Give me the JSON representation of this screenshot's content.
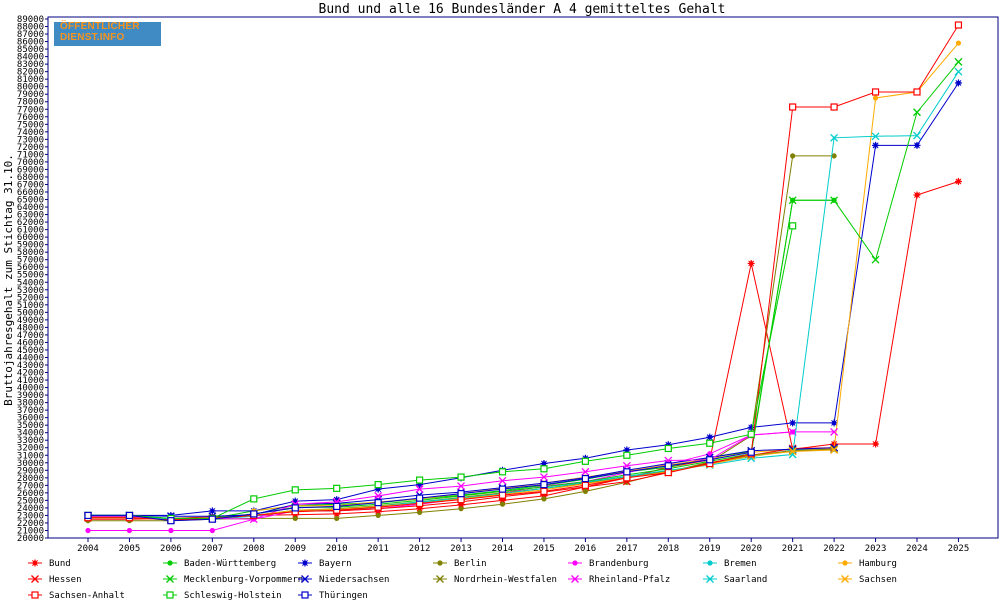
{
  "logo": {
    "line1": "ÖFFENTLICHER",
    "line2": "DIENST.INFO"
  },
  "chart_data": {
    "type": "line",
    "title": "Bund und alle 16 Bundesländer A 4 gemitteltes Gehalt",
    "xlabel": "",
    "ylabel": "Bruttojahresgehalt zum Stichtag 31.10.",
    "ylim": [
      20000,
      89000
    ],
    "ytick_step": 1000,
    "categories": [
      "2004",
      "2005",
      "2006",
      "2007",
      "2008",
      "2009",
      "2010",
      "2011",
      "2012",
      "2013",
      "2014",
      "2015",
      "2016",
      "2017",
      "2018",
      "2019",
      "2020",
      "2021",
      "2022",
      "2023",
      "2024",
      "2025"
    ],
    "grid": false,
    "legend_position": "bottom",
    "series": [
      {
        "name": "Bund",
        "color": "#ff0000",
        "marker": "star",
        "values": [
          22500,
          22500,
          22600,
          22800,
          23000,
          23100,
          23200,
          23500,
          23900,
          24400,
          25000,
          25600,
          26800,
          28000,
          29400,
          30400,
          56500,
          31800,
          32500,
          32500,
          65600,
          67400
        ]
      },
      {
        "name": "Baden-Württemberg",
        "color": "#00cc00",
        "marker": "dot",
        "values": [
          22800,
          22800,
          22600,
          22600,
          23600,
          24300,
          24500,
          24700,
          25200,
          25700,
          26300,
          27000,
          27800,
          28800,
          29400,
          30700,
          31500,
          64900,
          64900,
          null,
          null,
          null
        ]
      },
      {
        "name": "Bayern",
        "color": "#0000cc",
        "marker": "star",
        "values": [
          23000,
          23000,
          23000,
          23600,
          23600,
          24900,
          25100,
          26500,
          27100,
          28000,
          29000,
          29900,
          30600,
          31700,
          32400,
          33400,
          34700,
          35300,
          35300,
          72200,
          72200,
          80500
        ]
      },
      {
        "name": "Berlin",
        "color": "#808000",
        "marker": "dot",
        "values": [
          22300,
          22300,
          22300,
          22500,
          22600,
          22600,
          22600,
          23000,
          23400,
          23900,
          24500,
          25200,
          26200,
          27400,
          28800,
          30100,
          33600,
          70800,
          70800,
          null,
          null,
          null
        ]
      },
      {
        "name": "Brandenburg",
        "color": "#ff00ff",
        "marker": "dot",
        "values": [
          21000,
          21000,
          21000,
          21000,
          22500,
          23600,
          23600,
          23900,
          24500,
          25200,
          26000,
          26900,
          27500,
          28700,
          29800,
          31200,
          33700,
          34100,
          null,
          null,
          null,
          null
        ]
      },
      {
        "name": "Bremen",
        "color": "#00cccc",
        "marker": "dot",
        "values": [
          23000,
          23000,
          22500,
          22500,
          22900,
          23600,
          23600,
          24100,
          24700,
          25200,
          25900,
          26600,
          27300,
          28100,
          28900,
          29900,
          30800,
          31700,
          31800,
          null,
          null,
          null
        ]
      },
      {
        "name": "Hamburg",
        "color": "#ffaa00",
        "marker": "dot",
        "values": [
          null,
          null,
          null,
          null,
          23600,
          24300,
          24300,
          24800,
          25200,
          25900,
          26600,
          27300,
          28100,
          28900,
          29700,
          30500,
          31400,
          31800,
          31900,
          78500,
          79300,
          85800
        ]
      },
      {
        "name": "Hessen",
        "color": "#ff0000",
        "marker": "x",
        "values": [
          23000,
          23000,
          22500,
          22600,
          23000,
          23600,
          23600,
          23900,
          24300,
          24800,
          25500,
          26100,
          26800,
          27500,
          28700,
          30000,
          31000,
          31900,
          32000,
          null,
          null,
          null
        ]
      },
      {
        "name": "Mecklenburg-Vorpommern",
        "color": "#00cc00",
        "marker": "x",
        "values": [
          22700,
          22700,
          22400,
          22600,
          23200,
          24100,
          24100,
          24500,
          25000,
          25600,
          26200,
          26800,
          27500,
          28400,
          29200,
          30200,
          31200,
          64900,
          64900,
          57000,
          76600,
          83300
        ]
      },
      {
        "name": "Niedersachsen",
        "color": "#0000cc",
        "marker": "x",
        "values": [
          23000,
          23000,
          22900,
          22900,
          23100,
          24500,
          24600,
          25100,
          25700,
          26100,
          26700,
          27300,
          28000,
          29000,
          29900,
          30700,
          31600,
          31800,
          32000,
          null,
          null,
          null
        ]
      },
      {
        "name": "Nordrhein-Westfalen",
        "color": "#808000",
        "marker": "x",
        "values": [
          22800,
          22800,
          22400,
          22600,
          23000,
          23700,
          23900,
          24300,
          24800,
          25400,
          26000,
          26600,
          27300,
          28200,
          28900,
          29900,
          31000,
          31600,
          31800,
          null,
          null,
          null
        ]
      },
      {
        "name": "Rheinland-Pfalz",
        "color": "#ff00ff",
        "marker": "x",
        "values": [
          22900,
          22900,
          22400,
          22600,
          22500,
          24500,
          24800,
          25600,
          26500,
          26900,
          27600,
          28100,
          28800,
          29600,
          30300,
          30400,
          33700,
          34100,
          34100,
          null,
          null,
          null
        ]
      },
      {
        "name": "Saarland",
        "color": "#00cccc",
        "marker": "x",
        "values": [
          23000,
          23000,
          22500,
          22600,
          23000,
          23700,
          23800,
          24200,
          24800,
          25300,
          25900,
          26600,
          27400,
          28200,
          29000,
          29700,
          30600,
          31100,
          73200,
          73400,
          73500,
          82000
        ]
      },
      {
        "name": "Sachsen",
        "color": "#ffaa00",
        "marker": "x",
        "values": [
          22700,
          22700,
          22400,
          22600,
          23000,
          23700,
          23800,
          24200,
          24600,
          25200,
          25800,
          26400,
          27200,
          28000,
          28800,
          29800,
          30900,
          31500,
          31700,
          null,
          null,
          null
        ]
      },
      {
        "name": "Sachsen-Anhalt",
        "color": "#ff0000",
        "marker": "square",
        "values": [
          22700,
          22700,
          22400,
          22600,
          23000,
          23500,
          23700,
          24100,
          24600,
          25100,
          25700,
          26200,
          27000,
          28000,
          28700,
          29900,
          31200,
          77300,
          77300,
          79300,
          79300,
          88200
        ]
      },
      {
        "name": "Schleswig-Holstein",
        "color": "#00cc00",
        "marker": "square",
        "values": [
          23000,
          23000,
          22600,
          22600,
          25200,
          26400,
          26600,
          27100,
          27700,
          28100,
          28800,
          29200,
          30200,
          31000,
          31900,
          32600,
          33800,
          61500,
          null,
          null,
          null,
          null
        ]
      },
      {
        "name": "Thüringen",
        "color": "#0000cc",
        "marker": "square",
        "values": [
          23000,
          23000,
          22300,
          22500,
          23200,
          24000,
          24200,
          24700,
          25300,
          25900,
          26500,
          27100,
          27900,
          28800,
          29600,
          30400,
          31400,
          null,
          null,
          null,
          null,
          null
        ]
      }
    ]
  }
}
